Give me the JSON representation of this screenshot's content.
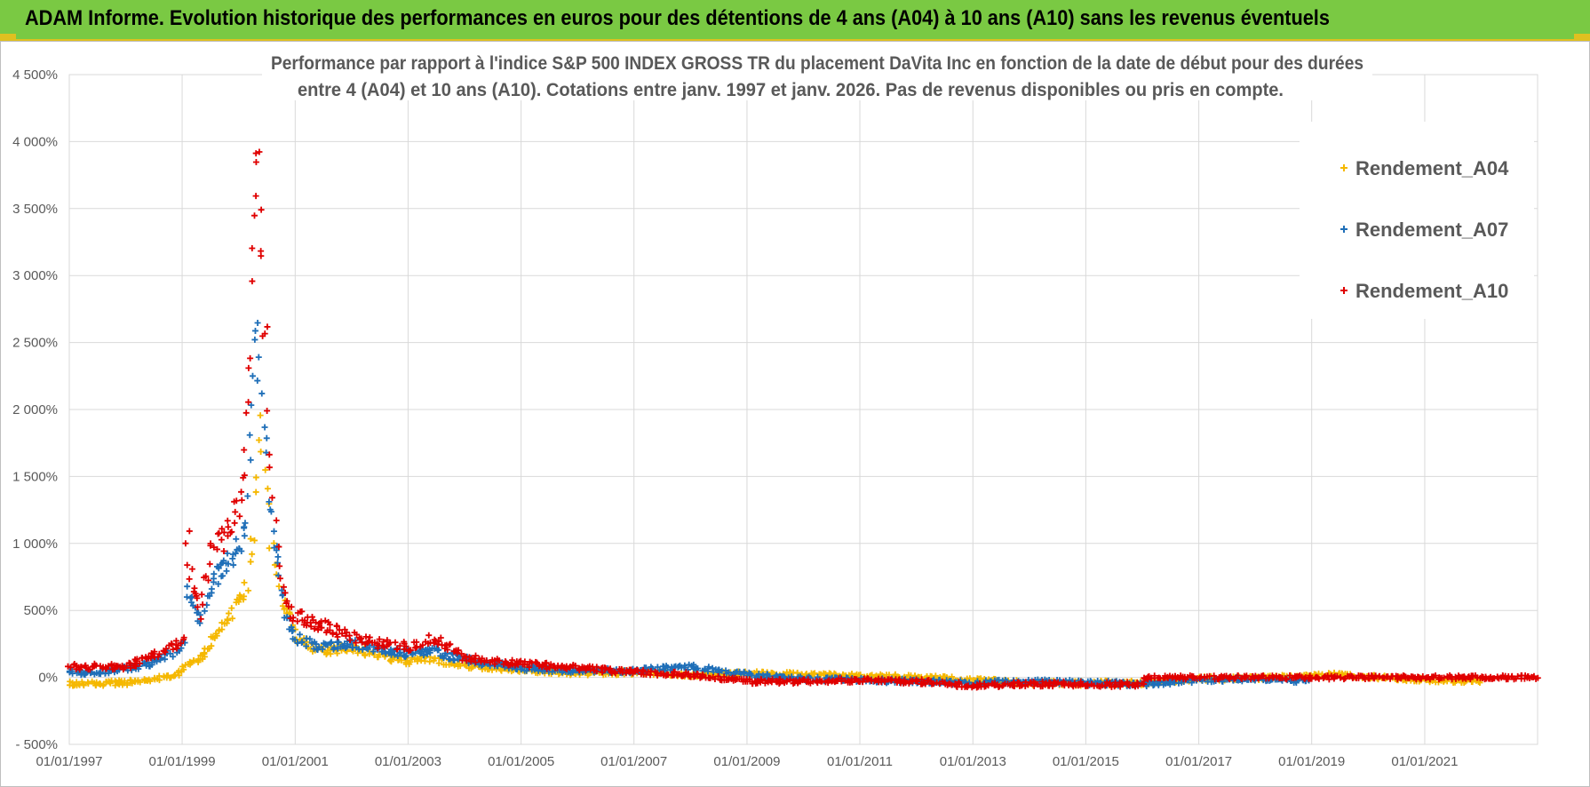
{
  "header": {
    "title": "ADAM Informe. Evolution historique des performances en euros pour des détentions de 4 ans (A04) à 10 ans (A10) sans les revenus éventuels",
    "background": "#7ac943",
    "accent": "#e0c020"
  },
  "chart_data": {
    "type": "scatter",
    "title_lines": [
      "Performance par rapport à l'indice S&P 500 INDEX GROSS TR  du placement DaVita Inc en fonction de la date de début pour des durées",
      "entre 4 (A04) et 10 ans (A10).  Cotations entre janv. 1997 et janv. 2026. Pas de revenus disponibles ou pris en compte."
    ],
    "x_range": [
      "1997-01-01",
      "2023-01-01"
    ],
    "x_ticks": [
      "01/01/1997",
      "01/01/1999",
      "01/01/2001",
      "01/01/2003",
      "01/01/2005",
      "01/01/2007",
      "01/01/2009",
      "01/01/2011",
      "01/01/2013",
      "01/01/2015",
      "01/01/2017",
      "01/01/2019",
      "01/01/2021"
    ],
    "y_unit": "%",
    "ylim": [
      -500,
      4500
    ],
    "y_ticks": [
      -500,
      0,
      500,
      1000,
      1500,
      2000,
      2500,
      3000,
      3500,
      4000,
      4500
    ],
    "y_tick_labels": [
      "- 500%",
      "0%",
      "500%",
      "1 000%",
      "1 500%",
      "2 000%",
      "2 500%",
      "3 000%",
      "3 500%",
      "4 000%",
      "4 500%"
    ],
    "grid": true,
    "legend_position": "top-right",
    "marker": "+",
    "series": [
      {
        "name": "Rendement_A04",
        "color": "#f5b800",
        "x_end": "2022-01-01",
        "points": [
          [
            "1997-01-01",
            -50
          ],
          [
            "1997-06-01",
            -45
          ],
          [
            "1998-01-01",
            -40
          ],
          [
            "1998-06-01",
            -20
          ],
          [
            "1998-12-01",
            20
          ],
          [
            "1999-02-01",
            80
          ],
          [
            "1999-03-15",
            110
          ],
          [
            "1999-05-01",
            140
          ],
          [
            "1999-07-01",
            250
          ],
          [
            "1999-09-01",
            350
          ],
          [
            "1999-11-01",
            450
          ],
          [
            "2000-01-01",
            550
          ],
          [
            "2000-02-15",
            650
          ],
          [
            "2000-03-15",
            900
          ],
          [
            "2000-04-20",
            1300
          ],
          [
            "2000-05-20",
            2000
          ],
          [
            "2000-06-25",
            1450
          ],
          [
            "2000-08-01",
            1000
          ],
          [
            "2000-09-01",
            850
          ],
          [
            "2000-10-01",
            600
          ],
          [
            "2000-11-01",
            550
          ],
          [
            "2000-12-01",
            450
          ],
          [
            "2001-01-01",
            300
          ],
          [
            "2001-06-01",
            200
          ],
          [
            "2002-01-01",
            220
          ],
          [
            "2002-07-01",
            160
          ],
          [
            "2003-01-01",
            120
          ],
          [
            "2003-06-01",
            140
          ],
          [
            "2004-01-01",
            90
          ],
          [
            "2005-01-01",
            60
          ],
          [
            "2006-01-01",
            30
          ],
          [
            "2007-01-01",
            40
          ],
          [
            "2008-01-01",
            20
          ],
          [
            "2009-01-01",
            30
          ],
          [
            "2010-01-01",
            20
          ],
          [
            "2011-01-01",
            10
          ],
          [
            "2012-01-01",
            5
          ],
          [
            "2013-01-01",
            -20
          ],
          [
            "2014-01-01",
            -40
          ],
          [
            "2015-01-01",
            -45
          ],
          [
            "2016-01-01",
            -40
          ],
          [
            "2017-01-01",
            -10
          ],
          [
            "2018-01-01",
            -5
          ],
          [
            "2019-01-01",
            10
          ],
          [
            "2019-06-01",
            20
          ],
          [
            "2020-01-01",
            5
          ],
          [
            "2021-01-01",
            -20
          ],
          [
            "2022-01-01",
            -30
          ]
        ]
      },
      {
        "name": "Rendement_A07",
        "color": "#1f6fb8",
        "x_end": "2019-01-01",
        "points": [
          [
            "1997-01-01",
            30
          ],
          [
            "1997-06-01",
            40
          ],
          [
            "1998-01-01",
            60
          ],
          [
            "1998-06-01",
            100
          ],
          [
            "1998-12-01",
            200
          ],
          [
            "1999-01-15",
            300
          ],
          [
            "1999-02-01",
            700
          ],
          [
            "1999-03-01",
            600
          ],
          [
            "1999-05-01",
            400
          ],
          [
            "1999-07-01",
            650
          ],
          [
            "1999-09-01",
            800
          ],
          [
            "1999-11-01",
            900
          ],
          [
            "2000-01-01",
            1000
          ],
          [
            "2000-02-15",
            1200
          ],
          [
            "2000-03-15",
            1800
          ],
          [
            "2000-04-20",
            2400
          ],
          [
            "2000-05-20",
            2500
          ],
          [
            "2000-06-25",
            1700
          ],
          [
            "2000-08-01",
            1100
          ],
          [
            "2000-09-01",
            1000
          ],
          [
            "2000-10-01",
            700
          ],
          [
            "2000-11-01",
            500
          ],
          [
            "2000-12-01",
            400
          ],
          [
            "2001-01-01",
            300
          ],
          [
            "2001-06-01",
            220
          ],
          [
            "2002-01-01",
            250
          ],
          [
            "2002-07-01",
            200
          ],
          [
            "2003-01-01",
            180
          ],
          [
            "2003-06-01",
            200
          ],
          [
            "2004-01-01",
            130
          ],
          [
            "2005-01-01",
            70
          ],
          [
            "2006-01-01",
            50
          ],
          [
            "2007-01-01",
            50
          ],
          [
            "2008-01-01",
            80
          ],
          [
            "2009-01-01",
            20
          ],
          [
            "2010-01-01",
            -10
          ],
          [
            "2011-01-01",
            -20
          ],
          [
            "2012-01-01",
            -30
          ],
          [
            "2013-01-01",
            -40
          ],
          [
            "2014-01-01",
            -30
          ],
          [
            "2015-01-01",
            -40
          ],
          [
            "2016-01-01",
            -50
          ],
          [
            "2017-01-01",
            -20
          ],
          [
            "2018-01-01",
            -10
          ],
          [
            "2019-01-01",
            -30
          ]
        ]
      },
      {
        "name": "Rendement_A10",
        "color": "#e00000",
        "x_end": "2023-01-01",
        "points": [
          [
            "1997-01-01",
            80
          ],
          [
            "1997-06-01",
            80
          ],
          [
            "1998-01-01",
            80
          ],
          [
            "1998-06-01",
            150
          ],
          [
            "1998-12-01",
            250
          ],
          [
            "1999-01-15",
            300
          ],
          [
            "1999-02-01",
            1200
          ],
          [
            "1999-03-01",
            700
          ],
          [
            "1999-05-01",
            450
          ],
          [
            "1999-07-01",
            900
          ],
          [
            "1999-09-01",
            1000
          ],
          [
            "1999-11-01",
            1100
          ],
          [
            "2000-01-01",
            1300
          ],
          [
            "2000-02-15",
            1700
          ],
          [
            "2000-03-15",
            2500
          ],
          [
            "2000-04-20",
            4000
          ],
          [
            "2000-05-20",
            3300
          ],
          [
            "2000-06-25",
            2600
          ],
          [
            "2000-08-01",
            1500
          ],
          [
            "2000-09-01",
            1000
          ],
          [
            "2000-10-01",
            800
          ],
          [
            "2000-11-01",
            600
          ],
          [
            "2000-12-01",
            500
          ],
          [
            "2001-01-01",
            450
          ],
          [
            "2001-06-01",
            400
          ],
          [
            "2002-01-01",
            300
          ],
          [
            "2002-07-01",
            250
          ],
          [
            "2003-01-01",
            230
          ],
          [
            "2003-06-01",
            300
          ],
          [
            "2004-01-01",
            150
          ],
          [
            "2005-01-01",
            100
          ],
          [
            "2006-01-01",
            70
          ],
          [
            "2007-01-01",
            40
          ],
          [
            "2008-01-01",
            20
          ],
          [
            "2009-01-01",
            -30
          ],
          [
            "2010-01-01",
            -30
          ],
          [
            "2011-01-01",
            -20
          ],
          [
            "2012-01-01",
            -30
          ],
          [
            "2013-01-01",
            -60
          ],
          [
            "2014-01-01",
            -50
          ],
          [
            "2015-01-01",
            -50
          ],
          [
            "2016-01-01",
            -55
          ],
          [
            "2016-01-20",
            0
          ],
          [
            "2017-01-01",
            0
          ],
          [
            "2018-01-01",
            0
          ],
          [
            "2019-01-01",
            0
          ],
          [
            "2020-01-01",
            0
          ],
          [
            "2021-01-01",
            0
          ],
          [
            "2022-01-01",
            0
          ],
          [
            "2023-01-01",
            0
          ]
        ]
      }
    ]
  }
}
